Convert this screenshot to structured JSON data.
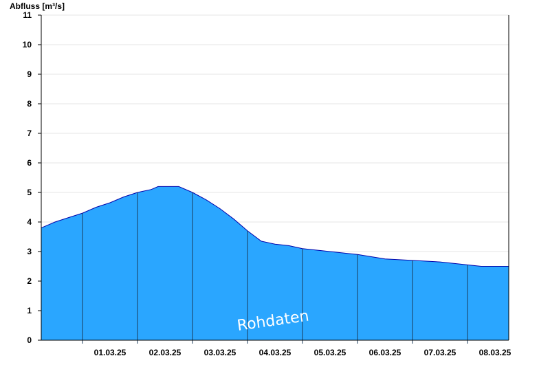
{
  "chart_data": {
    "type": "area",
    "ylabel": "Abfluss [m³/s]",
    "ylim": [
      0,
      11
    ],
    "yticks": [
      0,
      1,
      2,
      3,
      4,
      5,
      6,
      7,
      8,
      9,
      10,
      11
    ],
    "xlim": [
      "2025-02-28T06:00",
      "2025-03-08T18:00"
    ],
    "xticks": [
      {
        "x": "2025-03-01T12:00",
        "label": "01.03.25"
      },
      {
        "x": "2025-03-02T12:00",
        "label": "02.03.25"
      },
      {
        "x": "2025-03-03T12:00",
        "label": "03.03.25"
      },
      {
        "x": "2025-03-04T12:00",
        "label": "04.03.25"
      },
      {
        "x": "2025-03-05T12:00",
        "label": "05.03.25"
      },
      {
        "x": "2025-03-06T12:00",
        "label": "06.03.25"
      },
      {
        "x": "2025-03-07T12:00",
        "label": "07.03.25"
      },
      {
        "x": "2025-03-08T12:00",
        "label": "08.03.25"
      }
    ],
    "day_separators": [
      "2025-03-01T00:00",
      "2025-03-02T00:00",
      "2025-03-03T00:00",
      "2025-03-04T00:00",
      "2025-03-05T00:00",
      "2025-03-06T00:00",
      "2025-03-07T00:00",
      "2025-03-08T00:00"
    ],
    "grid": true,
    "fill_color": "#2aa6ff",
    "line_color": "#0000aa",
    "annotation": "Rohdaten",
    "series": [
      {
        "values": [
          {
            "x": "2025-02-28T06:00",
            "y": 3.8
          },
          {
            "x": "2025-02-28T09:00",
            "y": 3.9
          },
          {
            "x": "2025-02-28T12:00",
            "y": 4.0
          },
          {
            "x": "2025-02-28T18:00",
            "y": 4.15
          },
          {
            "x": "2025-03-01T00:00",
            "y": 4.3
          },
          {
            "x": "2025-03-01T06:00",
            "y": 4.5
          },
          {
            "x": "2025-03-01T12:00",
            "y": 4.65
          },
          {
            "x": "2025-03-01T18:00",
            "y": 4.85
          },
          {
            "x": "2025-03-02T00:00",
            "y": 5.0
          },
          {
            "x": "2025-03-02T06:00",
            "y": 5.1
          },
          {
            "x": "2025-03-02T09:00",
            "y": 5.2
          },
          {
            "x": "2025-03-02T12:00",
            "y": 5.2
          },
          {
            "x": "2025-03-02T18:00",
            "y": 5.2
          },
          {
            "x": "2025-03-03T00:00",
            "y": 5.0
          },
          {
            "x": "2025-03-03T06:00",
            "y": 4.75
          },
          {
            "x": "2025-03-03T12:00",
            "y": 4.45
          },
          {
            "x": "2025-03-03T18:00",
            "y": 4.1
          },
          {
            "x": "2025-03-04T00:00",
            "y": 3.7
          },
          {
            "x": "2025-03-04T06:00",
            "y": 3.35
          },
          {
            "x": "2025-03-04T12:00",
            "y": 3.25
          },
          {
            "x": "2025-03-04T18:00",
            "y": 3.2
          },
          {
            "x": "2025-03-05T00:00",
            "y": 3.1
          },
          {
            "x": "2025-03-05T12:00",
            "y": 3.0
          },
          {
            "x": "2025-03-06T00:00",
            "y": 2.9
          },
          {
            "x": "2025-03-06T12:00",
            "y": 2.75
          },
          {
            "x": "2025-03-07T00:00",
            "y": 2.7
          },
          {
            "x": "2025-03-07T12:00",
            "y": 2.65
          },
          {
            "x": "2025-03-08T00:00",
            "y": 2.55
          },
          {
            "x": "2025-03-08T06:00",
            "y": 2.5
          },
          {
            "x": "2025-03-08T18:00",
            "y": 2.5
          }
        ]
      }
    ]
  }
}
